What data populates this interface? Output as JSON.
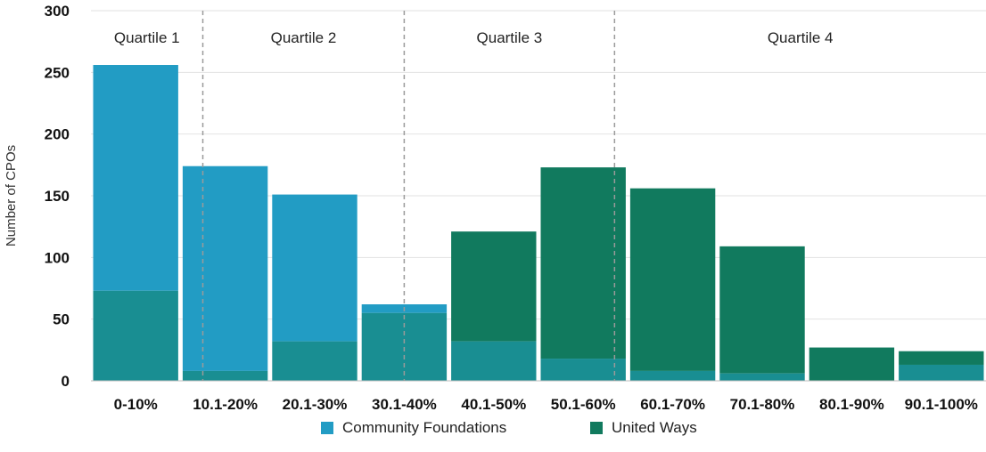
{
  "chart_data": {
    "type": "bar",
    "ylabel": "Number of CPOs",
    "xlabel": "",
    "ylim": [
      0,
      300
    ],
    "yticks": [
      0,
      50,
      100,
      150,
      200,
      250,
      300
    ],
    "categories": [
      "0-10%",
      "10.1-20%",
      "20.1-30%",
      "30.1-40%",
      "40.1-50%",
      "50.1-60%",
      "60.1-70%",
      "70.1-80%",
      "80.1-90%",
      "90.1-100%"
    ],
    "series": [
      {
        "name": "Community Foundations",
        "color": "#229cc4",
        "values": [
          256,
          174,
          151,
          62,
          32,
          18,
          8,
          6,
          0,
          13
        ]
      },
      {
        "name": "United Ways",
        "color": "#117a5e",
        "values": [
          73,
          8,
          32,
          55,
          121,
          173,
          156,
          109,
          27,
          24
        ]
      }
    ],
    "overlap_color": "#198e92",
    "grid": "horizontal",
    "legend_position": "bottom-center",
    "quartiles": {
      "labels": [
        "Quartile 1",
        "Quartile 2",
        "Quartile 3",
        "Quartile 4"
      ],
      "boundaries": [
        1.25,
        3.5,
        5.85
      ]
    }
  }
}
